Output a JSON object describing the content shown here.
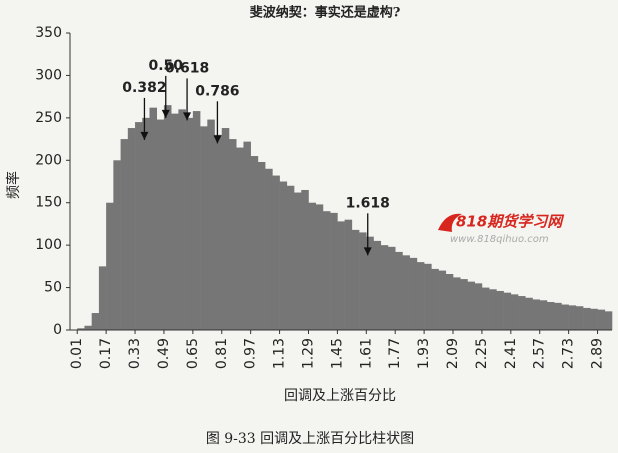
{
  "chart_data": {
    "type": "histogram",
    "title": "斐波纳契：事实还是虚构?",
    "ylabel": "频率",
    "xlabel": "回调及上涨百分比",
    "caption": "图 9-33    回调及上涨百分比柱状图",
    "watermark": {
      "text": "818期货学习网",
      "url": "www.818qihuo.com"
    },
    "color": "#767676",
    "grid": false,
    "bins": [
      0.01,
      0.05,
      0.09,
      0.13,
      0.17,
      0.21,
      0.25,
      0.29,
      0.33,
      0.37,
      0.41,
      0.45,
      0.49,
      0.53,
      0.57,
      0.61,
      0.65,
      0.69,
      0.73,
      0.77,
      0.81,
      0.85,
      0.89,
      0.93,
      0.97,
      1.01,
      1.05,
      1.09,
      1.13,
      1.17,
      1.21,
      1.25,
      1.29,
      1.33,
      1.37,
      1.41,
      1.45,
      1.49,
      1.53,
      1.57,
      1.61,
      1.65,
      1.69,
      1.73,
      1.77,
      1.81,
      1.85,
      1.89,
      1.93,
      1.97,
      2.01,
      2.05,
      2.09,
      2.13,
      2.17,
      2.21,
      2.25,
      2.29,
      2.33,
      2.37,
      2.41,
      2.45,
      2.49,
      2.53,
      2.57,
      2.61,
      2.65,
      2.69,
      2.73,
      2.77,
      2.81,
      2.85,
      2.89,
      2.93,
      2.97
    ],
    "values": [
      2,
      5,
      20,
      75,
      150,
      200,
      225,
      238,
      245,
      250,
      262,
      248,
      265,
      255,
      260,
      250,
      258,
      240,
      248,
      230,
      238,
      225,
      215,
      222,
      205,
      198,
      190,
      182,
      175,
      170,
      162,
      165,
      150,
      148,
      140,
      138,
      128,
      130,
      118,
      115,
      110,
      105,
      100,
      98,
      92,
      88,
      85,
      80,
      78,
      72,
      70,
      66,
      62,
      60,
      57,
      55,
      50,
      48,
      46,
      44,
      42,
      40,
      38,
      36,
      35,
      33,
      32,
      30,
      29,
      28,
      26,
      25,
      24,
      22
    ],
    "xlim": [
      -0.03,
      2.97
    ],
    "xticks": [
      0.01,
      0.17,
      0.33,
      0.49,
      0.65,
      0.81,
      0.97,
      1.13,
      1.29,
      1.45,
      1.61,
      1.77,
      1.93,
      2.09,
      2.25,
      2.41,
      2.57,
      2.73,
      2.89
    ],
    "ylim": [
      0,
      350
    ],
    "yticks": [
      0,
      50,
      100,
      150,
      200,
      250,
      300,
      350
    ],
    "annotations": [
      {
        "label": "0.382",
        "x": 0.382,
        "y": 224
      },
      {
        "label": "0.50",
        "x": 0.5,
        "y": 250
      },
      {
        "label": "0.618",
        "x": 0.618,
        "y": 247
      },
      {
        "label": "0.786",
        "x": 0.786,
        "y": 220
      },
      {
        "label": "1.618",
        "x": 1.618,
        "y": 88
      }
    ]
  }
}
